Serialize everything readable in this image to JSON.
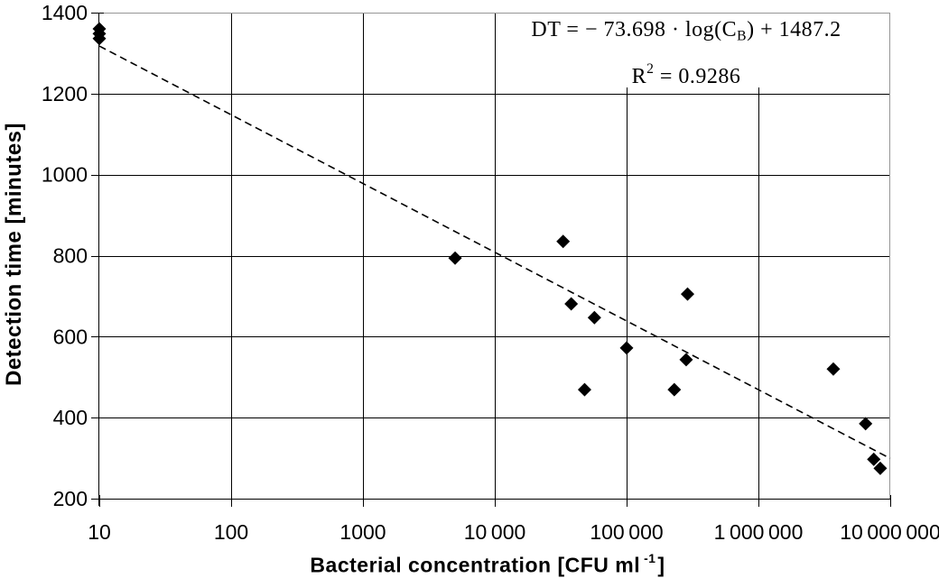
{
  "figure": {
    "background": "#ffffff",
    "axis_color": "#000000",
    "border_color": "#969696",
    "marker_color": "#000000"
  },
  "axes": {
    "x": {
      "title_main": "Bacterial concentration [CFU ml",
      "title_sup": "-1",
      "title_close": "]",
      "scale": "log"
    },
    "y": {
      "title": "Detection time [minutes]"
    }
  },
  "annotation": {
    "eq_pre": "DT = − 73.698 · log(C",
    "eq_sub": "B",
    "eq_post": ") + 1487.2",
    "r2_pre": "R",
    "r2_sup": "2",
    "r2_post": " = 0.9286"
  },
  "chart_data": {
    "type": "scatter",
    "title": "",
    "xlabel": "Bacterial concentration [CFU ml-1]",
    "ylabel": "Detection time [minutes]",
    "x_scale": "log",
    "x_range": [
      10,
      10000000
    ],
    "y_range": [
      200,
      1400
    ],
    "grid": true,
    "legend": "none",
    "marker": "diamond",
    "marker_color": "#000000",
    "x_ticks": [
      {
        "value": 10,
        "label": "10"
      },
      {
        "value": 100,
        "label": "100"
      },
      {
        "value": 1000,
        "label": "1000"
      },
      {
        "value": 10000,
        "label": "10 000"
      },
      {
        "value": 100000,
        "label": "100 000"
      },
      {
        "value": 1000000,
        "label": "1 000 000"
      },
      {
        "value": 10000000,
        "label": "10 000 000"
      }
    ],
    "y_ticks": [
      200,
      400,
      600,
      800,
      1000,
      1200,
      1400
    ],
    "points": [
      [
        10,
        1360
      ],
      [
        10,
        1348
      ],
      [
        10,
        1336
      ],
      [
        5000,
        794
      ],
      [
        33000,
        835
      ],
      [
        38000,
        681
      ],
      [
        57000,
        647
      ],
      [
        48000,
        469
      ],
      [
        100000,
        572
      ],
      [
        230000,
        469
      ],
      [
        283000,
        543
      ],
      [
        290000,
        705
      ],
      [
        3700000,
        520
      ],
      [
        6500000,
        385
      ],
      [
        7500000,
        297
      ],
      [
        8400000,
        275
      ]
    ],
    "trendline": {
      "style": "dashed",
      "slope_ln": -73.698,
      "intercept": 1487.2,
      "x_start": 10,
      "x_end": 10000000,
      "equation_label": "DT = -73.698 · log(CB) + 1487.2",
      "r_squared": 0.9286
    }
  }
}
